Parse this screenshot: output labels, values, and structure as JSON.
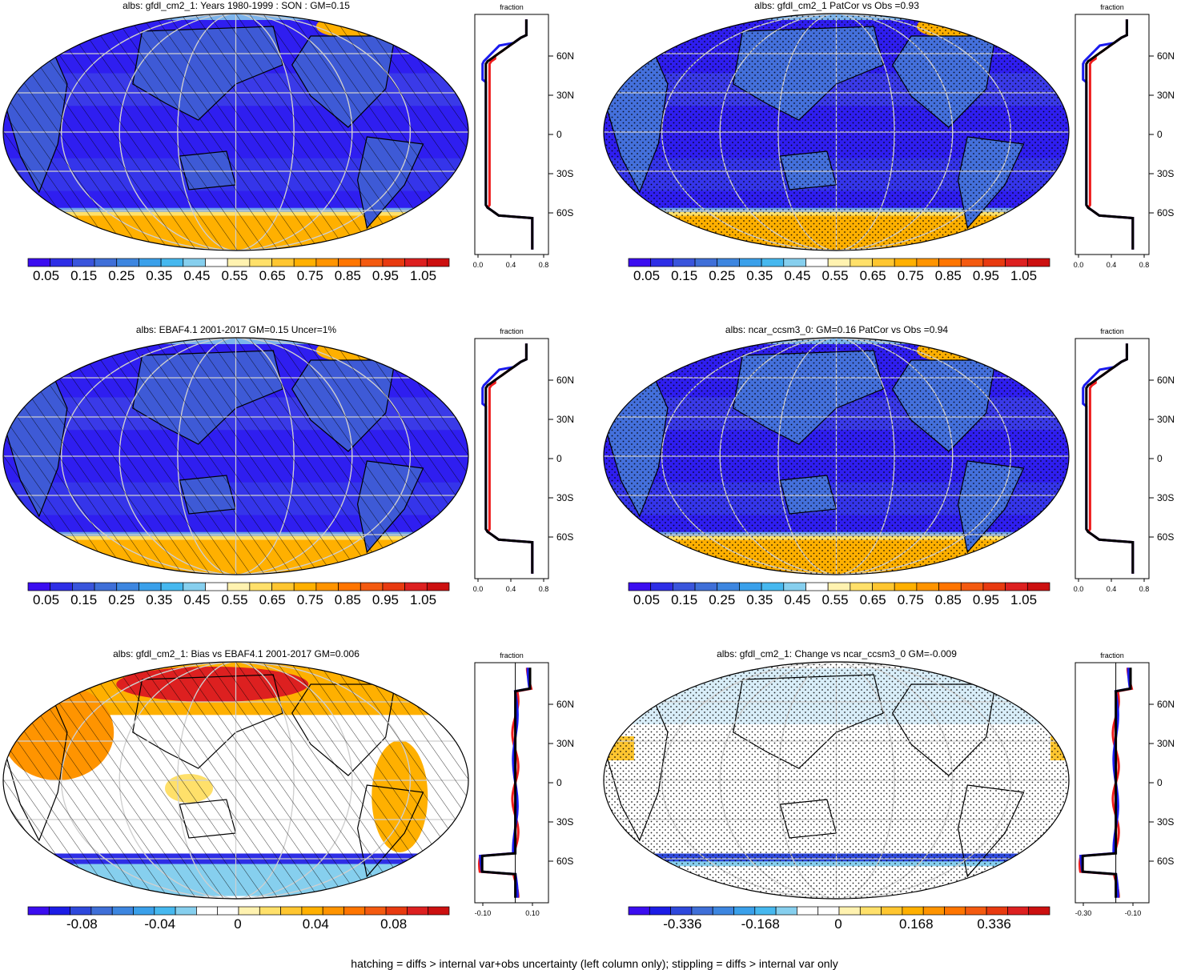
{
  "panels": [
    {
      "title": "albs: gfdl_cm2_1: Years 1980-1999 : SON : GM=0.15",
      "kind": "abs",
      "pattern": "hatch",
      "colorbar_labels": [
        "0.05",
        "0.15",
        "0.25",
        "0.35",
        "0.45",
        "0.55",
        "0.65",
        "0.75",
        "0.85",
        "0.95",
        "1.05"
      ],
      "profile_xticks": [
        "0.0",
        "0.4",
        "0.8"
      ]
    },
    {
      "title": "albs: gfdl_cm2_1 PatCor vs Obs =0.93",
      "kind": "abs",
      "pattern": "stipple",
      "colorbar_labels": [
        "0.05",
        "0.15",
        "0.25",
        "0.35",
        "0.45",
        "0.55",
        "0.65",
        "0.75",
        "0.85",
        "0.95",
        "1.05"
      ],
      "profile_xticks": [
        "0.0",
        "0.4",
        "0.8"
      ]
    },
    {
      "title": "albs: EBAF4.1 2001-2017 GM=0.15 Uncer=1%",
      "kind": "abs",
      "pattern": "hatch",
      "colorbar_labels": [
        "0.05",
        "0.15",
        "0.25",
        "0.35",
        "0.45",
        "0.55",
        "0.65",
        "0.75",
        "0.85",
        "0.95",
        "1.05"
      ],
      "profile_xticks": [
        "0.0",
        "0.4",
        "0.8"
      ]
    },
    {
      "title": "albs: ncar_ccsm3_0: GM=0.16 PatCor vs Obs =0.94",
      "kind": "abs",
      "pattern": "stipple",
      "colorbar_labels": [
        "0.05",
        "0.15",
        "0.25",
        "0.35",
        "0.45",
        "0.55",
        "0.65",
        "0.75",
        "0.85",
        "0.95",
        "1.05"
      ],
      "profile_xticks": [
        "0.0",
        "0.4",
        "0.8"
      ]
    },
    {
      "title": "albs: gfdl_cm2_1: Bias vs EBAF4.1 2001-2017  GM=0.006",
      "kind": "diff",
      "pattern": "hatch",
      "colorbar_labels": [
        "-0.08",
        "-0.04",
        "0",
        "0.04",
        "0.08"
      ],
      "profile_xticks": [
        "-0.10",
        "0.10"
      ]
    },
    {
      "title": "albs: gfdl_cm2_1: Change vs ncar_ccsm3_0 GM=-0.009",
      "kind": "diff",
      "pattern": "stipple",
      "colorbar_labels": [
        "-0.336",
        "-0.168",
        "0",
        "0.168",
        "0.336"
      ],
      "profile_xticks": [
        "-0.30",
        "-0.10"
      ]
    }
  ],
  "profile_header": "fraction",
  "lat_labels": [
    "60N",
    "30N",
    "0",
    "30S",
    "60S"
  ],
  "colors": {
    "abs_scale": [
      "#3b0df0",
      "#2e2ee6",
      "#3a55dc",
      "#3f6fd8",
      "#3d86e0",
      "#3aa0ea",
      "#46b8ef",
      "#86cfee",
      "#ffffff",
      "#fff2b0",
      "#ffe06a",
      "#ffc630",
      "#ffb000",
      "#ff9400",
      "#ff7500",
      "#f45a10",
      "#e83a10",
      "#dd2020",
      "#cc1010"
    ],
    "diff_scale": [
      "#3b0df0",
      "#1c1ce6",
      "#2e48dc",
      "#3f6fd8",
      "#3d86e0",
      "#3aa0ea",
      "#46b8ef",
      "#86cfee",
      "#ffffff",
      "#ffffff",
      "#fff2b0",
      "#ffe06a",
      "#ffc630",
      "#ffb000",
      "#ff9400",
      "#ff7500",
      "#f45a10",
      "#e83a10",
      "#dd2020",
      "#cc1010"
    ],
    "line_red": "#ee1c1c",
    "line_blue": "#1a1aee",
    "line_black": "#000000"
  },
  "footnote": "hatching = diffs > internal var+obs uncertainty (left column only); stippling = diffs > internal var only"
}
